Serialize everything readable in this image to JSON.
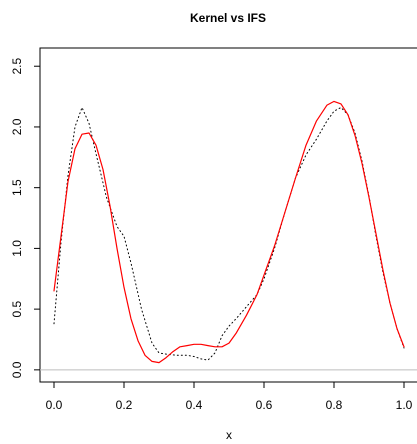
{
  "chart_data": {
    "type": "line",
    "title": "Kernel vs IFS",
    "xlabel": "x",
    "ylabel": "",
    "xlim": [
      -0.04,
      1.04
    ],
    "ylim": [
      -0.1,
      2.65
    ],
    "x_ticks": [
      0.0,
      0.2,
      0.4,
      0.6,
      0.8,
      1.0
    ],
    "x_tick_labels": [
      "0.0",
      "0.2",
      "0.4",
      "0.6",
      "0.8",
      "1.0"
    ],
    "y_ticks": [
      0.0,
      0.5,
      1.0,
      1.5,
      2.0,
      2.5
    ],
    "y_tick_labels": [
      "0.0",
      "0.5",
      "1.0",
      "1.5",
      "2.0",
      "2.5"
    ],
    "reference_line": {
      "y": 0.0,
      "color": "#bebebe"
    },
    "series": [
      {
        "style": "dotted",
        "color": "#000000",
        "x": [
          0.0,
          0.02,
          0.04,
          0.06,
          0.08,
          0.1,
          0.12,
          0.15,
          0.18,
          0.2,
          0.22,
          0.25,
          0.28,
          0.3,
          0.32,
          0.35,
          0.38,
          0.4,
          0.42,
          0.44,
          0.46,
          0.48,
          0.5,
          0.52,
          0.55,
          0.58,
          0.6,
          0.63,
          0.66,
          0.69,
          0.72,
          0.75,
          0.78,
          0.8,
          0.82,
          0.84,
          0.86,
          0.88,
          0.9,
          0.92,
          0.94,
          0.96,
          0.98,
          1.0
        ],
        "y": [
          0.38,
          1.05,
          1.6,
          2.0,
          2.16,
          2.03,
          1.78,
          1.42,
          1.18,
          1.1,
          0.88,
          0.5,
          0.22,
          0.14,
          0.13,
          0.12,
          0.12,
          0.11,
          0.09,
          0.08,
          0.14,
          0.28,
          0.36,
          0.42,
          0.52,
          0.62,
          0.75,
          1.0,
          1.3,
          1.58,
          1.77,
          1.9,
          2.05,
          2.13,
          2.16,
          2.1,
          1.95,
          1.72,
          1.43,
          1.1,
          0.8,
          0.55,
          0.34,
          0.18
        ]
      },
      {
        "style": "solid",
        "color": "#ff0000",
        "x": [
          0.0,
          0.02,
          0.04,
          0.06,
          0.08,
          0.1,
          0.12,
          0.14,
          0.16,
          0.18,
          0.2,
          0.22,
          0.24,
          0.26,
          0.28,
          0.3,
          0.32,
          0.34,
          0.36,
          0.38,
          0.4,
          0.42,
          0.44,
          0.46,
          0.48,
          0.5,
          0.52,
          0.55,
          0.58,
          0.6,
          0.63,
          0.66,
          0.69,
          0.72,
          0.75,
          0.78,
          0.8,
          0.82,
          0.84,
          0.86,
          0.88,
          0.9,
          0.92,
          0.94,
          0.96,
          0.98,
          1.0
        ],
        "y": [
          0.65,
          1.1,
          1.55,
          1.82,
          1.94,
          1.95,
          1.85,
          1.65,
          1.35,
          1.0,
          0.68,
          0.42,
          0.24,
          0.12,
          0.07,
          0.06,
          0.1,
          0.15,
          0.19,
          0.2,
          0.21,
          0.21,
          0.2,
          0.19,
          0.19,
          0.22,
          0.3,
          0.45,
          0.62,
          0.78,
          1.02,
          1.3,
          1.58,
          1.85,
          2.05,
          2.18,
          2.21,
          2.19,
          2.1,
          1.93,
          1.7,
          1.42,
          1.12,
          0.82,
          0.55,
          0.34,
          0.19
        ]
      }
    ]
  }
}
